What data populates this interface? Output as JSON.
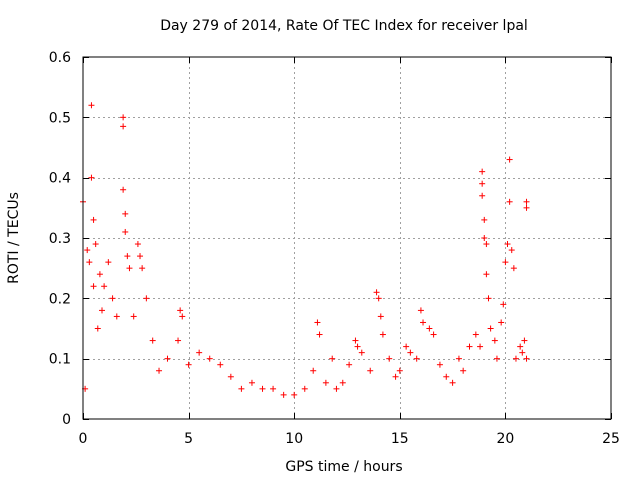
{
  "chart_data": {
    "type": "scatter",
    "title": "Day 279 of 2014, Rate Of TEC Index for receiver lpal",
    "xlabel": "GPS time / hours",
    "ylabel": "ROTI / TECUs",
    "xlim": [
      0,
      25
    ],
    "ylim": [
      0,
      0.6
    ],
    "xticks": [
      0,
      5,
      10,
      15,
      20,
      25
    ],
    "xtick_labels": [
      "0",
      "5",
      "10",
      "15",
      "20",
      "25"
    ],
    "yticks": [
      0,
      0.1,
      0.2,
      0.3,
      0.4,
      0.5,
      0.6
    ],
    "ytick_labels": [
      "0",
      "0.1",
      "0.2",
      "0.3",
      "0.4",
      "0.5",
      "0.6"
    ],
    "grid": true,
    "marker": "+",
    "color": "#ff0000",
    "series": [
      {
        "name": "ROTI",
        "points": [
          [
            0.0,
            0.36
          ],
          [
            0.1,
            0.05
          ],
          [
            0.2,
            0.28
          ],
          [
            0.3,
            0.26
          ],
          [
            0.4,
            0.52
          ],
          [
            0.4,
            0.4
          ],
          [
            0.5,
            0.33
          ],
          [
            0.5,
            0.22
          ],
          [
            0.6,
            0.29
          ],
          [
            0.7,
            0.15
          ],
          [
            0.8,
            0.24
          ],
          [
            0.9,
            0.18
          ],
          [
            1.0,
            0.22
          ],
          [
            1.2,
            0.26
          ],
          [
            1.4,
            0.2
          ],
          [
            1.6,
            0.17
          ],
          [
            1.9,
            0.5
          ],
          [
            1.9,
            0.485
          ],
          [
            1.9,
            0.38
          ],
          [
            2.0,
            0.34
          ],
          [
            2.0,
            0.31
          ],
          [
            2.1,
            0.27
          ],
          [
            2.2,
            0.25
          ],
          [
            2.4,
            0.17
          ],
          [
            2.6,
            0.29
          ],
          [
            2.7,
            0.27
          ],
          [
            2.8,
            0.25
          ],
          [
            3.0,
            0.2
          ],
          [
            3.3,
            0.13
          ],
          [
            3.6,
            0.08
          ],
          [
            4.0,
            0.1
          ],
          [
            4.5,
            0.13
          ],
          [
            4.6,
            0.18
          ],
          [
            4.7,
            0.17
          ],
          [
            5.0,
            0.09
          ],
          [
            5.5,
            0.11
          ],
          [
            6.0,
            0.1
          ],
          [
            6.5,
            0.09
          ],
          [
            7.0,
            0.07
          ],
          [
            7.5,
            0.05
          ],
          [
            8.0,
            0.06
          ],
          [
            8.5,
            0.05
          ],
          [
            9.0,
            0.05
          ],
          [
            9.5,
            0.04
          ],
          [
            10.0,
            0.04
          ],
          [
            10.5,
            0.05
          ],
          [
            10.9,
            0.08
          ],
          [
            11.1,
            0.16
          ],
          [
            11.2,
            0.14
          ],
          [
            11.5,
            0.06
          ],
          [
            11.8,
            0.1
          ],
          [
            12.0,
            0.05
          ],
          [
            12.3,
            0.06
          ],
          [
            12.6,
            0.09
          ],
          [
            12.9,
            0.13
          ],
          [
            13.0,
            0.12
          ],
          [
            13.2,
            0.11
          ],
          [
            13.6,
            0.08
          ],
          [
            13.9,
            0.21
          ],
          [
            14.0,
            0.2
          ],
          [
            14.1,
            0.17
          ],
          [
            14.2,
            0.14
          ],
          [
            14.5,
            0.1
          ],
          [
            14.8,
            0.07
          ],
          [
            15.0,
            0.08
          ],
          [
            15.3,
            0.12
          ],
          [
            15.5,
            0.11
          ],
          [
            15.8,
            0.1
          ],
          [
            16.0,
            0.18
          ],
          [
            16.1,
            0.16
          ],
          [
            16.4,
            0.15
          ],
          [
            16.6,
            0.14
          ],
          [
            16.9,
            0.09
          ],
          [
            17.2,
            0.07
          ],
          [
            17.5,
            0.06
          ],
          [
            17.8,
            0.1
          ],
          [
            18.0,
            0.08
          ],
          [
            18.3,
            0.12
          ],
          [
            18.6,
            0.14
          ],
          [
            18.8,
            0.12
          ],
          [
            18.9,
            0.41
          ],
          [
            18.9,
            0.39
          ],
          [
            18.9,
            0.37
          ],
          [
            19.0,
            0.33
          ],
          [
            19.0,
            0.3
          ],
          [
            19.1,
            0.29
          ],
          [
            19.1,
            0.24
          ],
          [
            19.2,
            0.2
          ],
          [
            19.3,
            0.15
          ],
          [
            19.5,
            0.13
          ],
          [
            19.6,
            0.1
          ],
          [
            19.8,
            0.16
          ],
          [
            19.9,
            0.19
          ],
          [
            20.0,
            0.26
          ],
          [
            20.1,
            0.29
          ],
          [
            20.2,
            0.43
          ],
          [
            20.2,
            0.36
          ],
          [
            20.3,
            0.28
          ],
          [
            20.4,
            0.25
          ],
          [
            20.5,
            0.1
          ],
          [
            20.7,
            0.12
          ],
          [
            20.8,
            0.11
          ],
          [
            20.9,
            0.13
          ],
          [
            21.0,
            0.36
          ],
          [
            21.0,
            0.35
          ],
          [
            21.0,
            0.1
          ]
        ]
      }
    ]
  }
}
